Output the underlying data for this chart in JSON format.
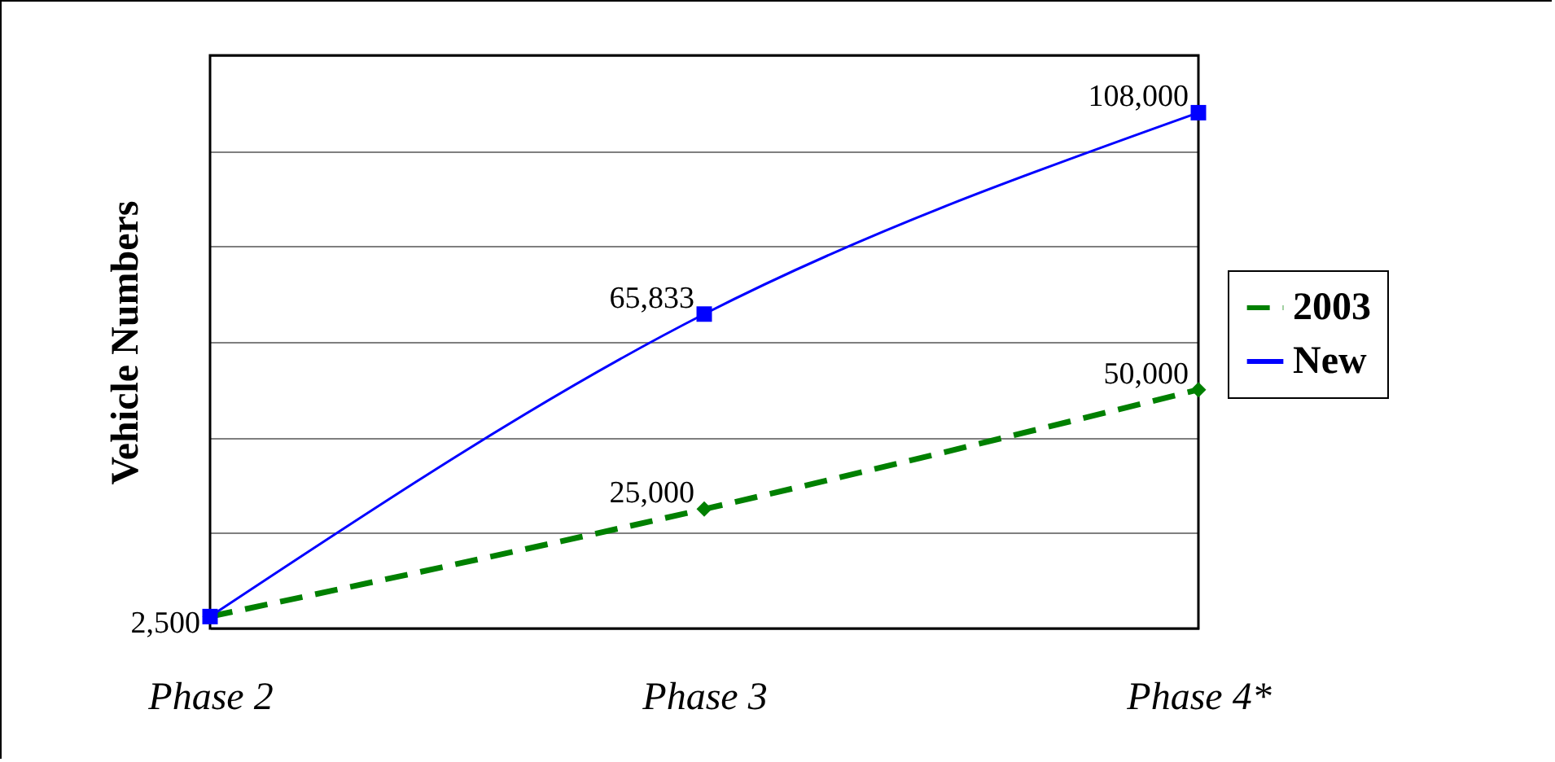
{
  "chart_data": {
    "type": "line",
    "ylabel": "Vehicle Numbers",
    "categories": [
      "Phase 2",
      "Phase 3",
      "Phase 4*"
    ],
    "series": [
      {
        "name": "2003",
        "color": "#008000",
        "values": [
          2500,
          25000,
          50000
        ],
        "value_labels": [
          null,
          "25,000",
          "50,000"
        ],
        "marker": "diamond",
        "line_style": "dashed"
      },
      {
        "name": "New",
        "color": "#0000ff",
        "values": [
          2500,
          65833,
          108000
        ],
        "value_labels": [
          "2,500",
          "65,833",
          "108,000"
        ],
        "marker": "square",
        "line_style": "solid"
      }
    ],
    "ylim": [
      0,
      120000
    ],
    "yticks": [
      {
        "value": 0,
        "label": null
      },
      {
        "value": 20000,
        "label": null
      },
      {
        "value": 40000,
        "label": null
      },
      {
        "value": 60000,
        "label": null
      },
      {
        "value": 80000,
        "label": null
      },
      {
        "value": 100000,
        "label": null
      },
      {
        "value": 120000,
        "label": null
      }
    ],
    "grid": "y",
    "tick_labels": "x",
    "legend": "right"
  }
}
